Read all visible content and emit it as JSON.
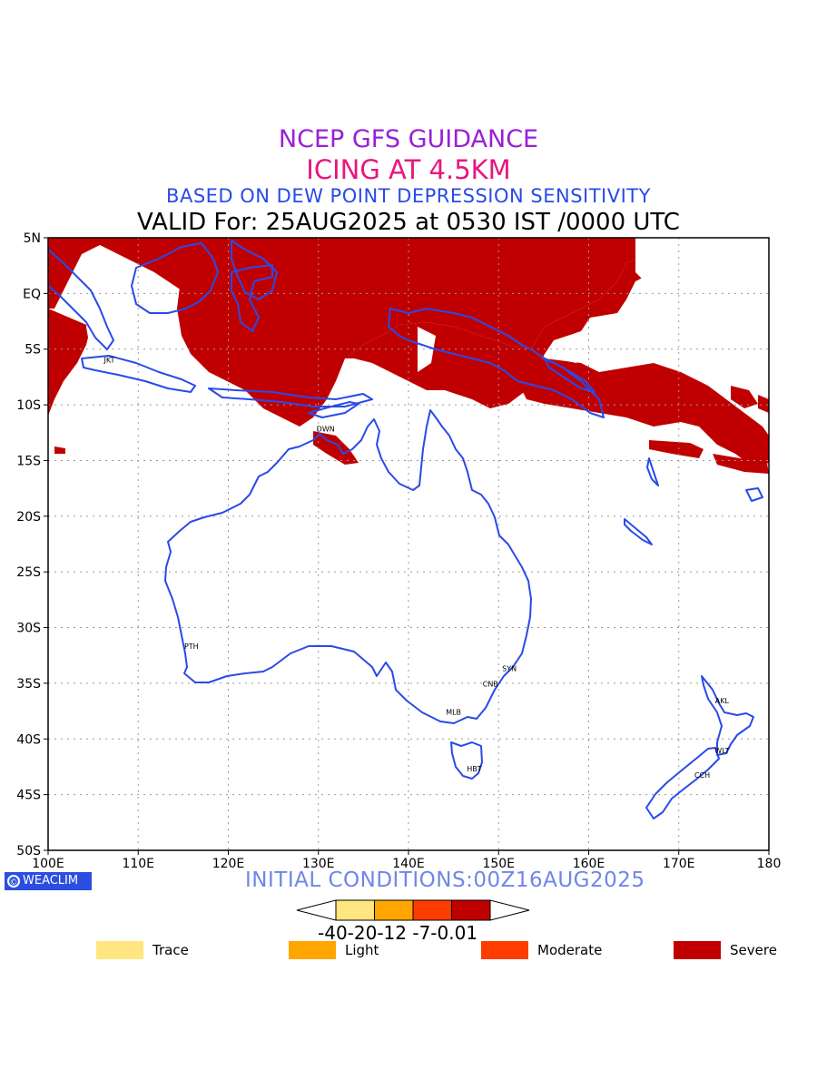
{
  "titles": {
    "line1": "NCEP GFS GUIDANCE",
    "line2": "ICING AT 4.5KM",
    "line3": "BASED ON DEW POINT DEPRESSION SENSITIVITY",
    "line4": "VALID For: 25AUG2025 at 0530 IST /0000 UTC"
  },
  "map": {
    "lon_range": [
      100,
      180
    ],
    "lat_range": [
      -50,
      5
    ],
    "lon_ticks": [
      {
        "v": 100,
        "label": "100E"
      },
      {
        "v": 110,
        "label": "110E"
      },
      {
        "v": 120,
        "label": "120E"
      },
      {
        "v": 130,
        "label": "130E"
      },
      {
        "v": 140,
        "label": "140E"
      },
      {
        "v": 150,
        "label": "150E"
      },
      {
        "v": 160,
        "label": "160E"
      },
      {
        "v": 170,
        "label": "170E"
      },
      {
        "v": 180,
        "label": "180"
      }
    ],
    "lat_ticks": [
      {
        "v": 5,
        "label": "5N"
      },
      {
        "v": 0,
        "label": "EQ"
      },
      {
        "v": -5,
        "label": "5S"
      },
      {
        "v": -10,
        "label": "10S"
      },
      {
        "v": -15,
        "label": "15S"
      },
      {
        "v": -20,
        "label": "20S"
      },
      {
        "v": -25,
        "label": "25S"
      },
      {
        "v": -30,
        "label": "30S"
      },
      {
        "v": -35,
        "label": "35S"
      },
      {
        "v": -40,
        "label": "40S"
      },
      {
        "v": -45,
        "label": "45S"
      },
      {
        "v": -50,
        "label": "50S"
      }
    ],
    "cities": [
      {
        "name": "JKT",
        "lon": 106.8,
        "lat": -6.2
      },
      {
        "name": "DWN",
        "lon": 130.8,
        "lat": -12.4
      },
      {
        "name": "PTH",
        "lon": 115.9,
        "lat": -31.9
      },
      {
        "name": "SYN",
        "lon": 151.2,
        "lat": -33.9
      },
      {
        "name": "CNB",
        "lon": 149.1,
        "lat": -35.3
      },
      {
        "name": "MLB",
        "lon": 145.0,
        "lat": -37.8
      },
      {
        "name": "HBT",
        "lon": 147.3,
        "lat": -42.9
      },
      {
        "name": "AKL",
        "lon": 174.8,
        "lat": -36.8
      },
      {
        "name": "WLT",
        "lon": 174.8,
        "lat": -41.3
      },
      {
        "name": "CCH",
        "lon": 172.6,
        "lat": -43.5
      }
    ],
    "coast_color": "#2a4ae8",
    "grid": true
  },
  "init_label": "INITIAL CONDITIONS:00Z16AUG2025",
  "logo_text": "WEACLIM",
  "colorbar": {
    "colors": [
      "#ffe680",
      "#ffa500",
      "#ff3c00",
      "#c00000"
    ],
    "labels_text": "-40-20-12 -7-0.01"
  },
  "legend": [
    {
      "label": "Trace",
      "color": "#ffe680"
    },
    {
      "label": "Light",
      "color": "#ffa500"
    },
    {
      "label": "Moderate",
      "color": "#ff3c00"
    },
    {
      "label": "Severe",
      "color": "#c00000"
    }
  ],
  "severe_color": "#c00000"
}
